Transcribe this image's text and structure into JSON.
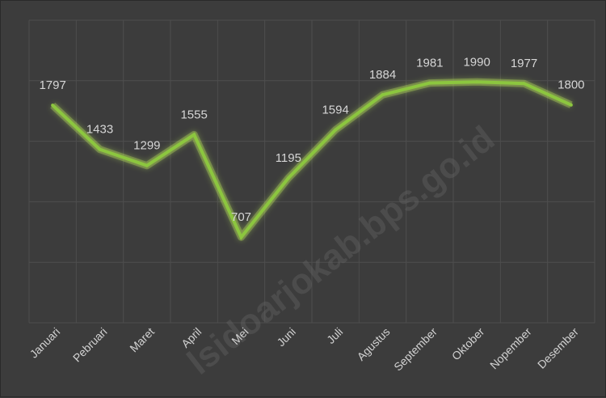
{
  "watermark": "lsidoarjokab.bps.go.id",
  "chart_data": {
    "type": "line",
    "categories": [
      "Januari",
      "Pebruari",
      "Maret",
      "April",
      "Mei",
      "Juni",
      "Juli",
      "Agustus",
      "September",
      "Oktober",
      "Nopember",
      "Desember"
    ],
    "series": [
      {
        "values": [
          1797,
          1433,
          1299,
          1555,
          707,
          1195,
          1594,
          1884,
          1981,
          1990,
          1977,
          1800
        ],
        "color": "#8cc63f"
      }
    ],
    "data_labels": [
      "1797",
      "1433",
      "1299",
      "1555",
      "707",
      "1195",
      "1594",
      "1884",
      "1981",
      "1990",
      "1977",
      "1800"
    ],
    "title": "",
    "xlabel": "",
    "ylabel": "",
    "ylim": [
      0,
      2500
    ],
    "grid": true,
    "legend": "none",
    "colors": {
      "background": "#3c3c3c",
      "grid": "#4e4e4e",
      "line": "#8cc63f",
      "glow": "#b6e25a",
      "text": "#d6d6d6"
    }
  }
}
